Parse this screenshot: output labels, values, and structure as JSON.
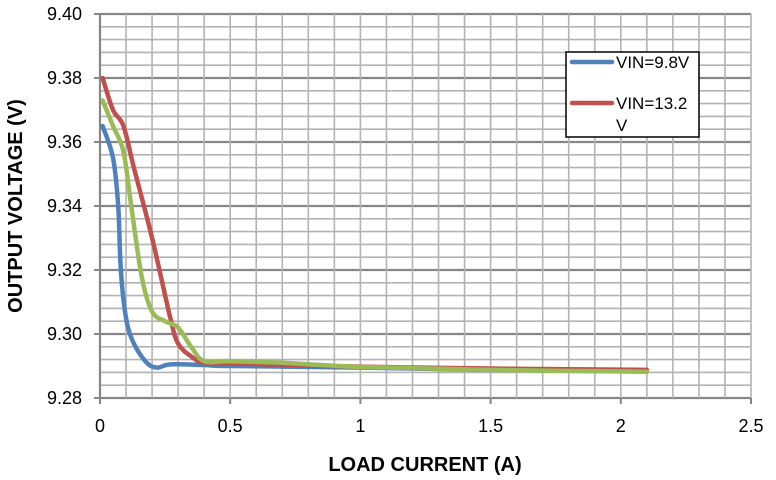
{
  "chart_data": {
    "type": "line",
    "title": "",
    "xlabel": "LOAD CURRENT (A)",
    "ylabel": "OUTPUT VOLTAGE (V)",
    "xlim": [
      0,
      2.5
    ],
    "ylim": [
      9.28,
      9.4
    ],
    "x_ticks": [
      "0",
      "0.5",
      "1",
      "1.5",
      "2",
      "2.5"
    ],
    "y_ticks": [
      "9.28",
      "9.30",
      "9.32",
      "9.34",
      "9.36",
      "9.38",
      "9.40"
    ],
    "grid": true,
    "legend_position": "top-right",
    "legend": [
      "VIN=9.8V",
      "VIN=13.2 V"
    ],
    "series": [
      {
        "name": "VIN=9.8V",
        "color": "#4F81BD",
        "x": [
          0.01,
          0.05,
          0.07,
          0.08,
          0.1,
          0.13,
          0.18,
          0.22,
          0.27,
          0.4,
          0.5,
          1.0,
          1.5,
          2.1
        ],
        "y": [
          9.365,
          9.355,
          9.34,
          9.32,
          9.305,
          9.297,
          9.291,
          9.2895,
          9.2905,
          9.2903,
          9.29,
          9.2895,
          9.2888,
          9.2883
        ]
      },
      {
        "name": "VIN=13.2 V",
        "color": "#C0504D",
        "x": [
          0.01,
          0.05,
          0.09,
          0.13,
          0.2,
          0.27,
          0.3,
          0.35,
          0.4,
          0.5,
          1.0,
          1.5,
          2.1
        ],
        "y": [
          9.38,
          9.37,
          9.365,
          9.352,
          9.33,
          9.305,
          9.297,
          9.293,
          9.291,
          9.2908,
          9.2898,
          9.2892,
          9.2888
        ]
      },
      {
        "color": "#9BBB59",
        "x": [
          0.01,
          0.05,
          0.09,
          0.12,
          0.16,
          0.2,
          0.25,
          0.3,
          0.35,
          0.4,
          0.5,
          0.7,
          1.0,
          1.5,
          2.1
        ],
        "y": [
          9.373,
          9.365,
          9.357,
          9.34,
          9.318,
          9.307,
          9.304,
          9.302,
          9.296,
          9.2915,
          9.2915,
          9.291,
          9.2897,
          9.2888,
          9.2882
        ]
      }
    ]
  }
}
